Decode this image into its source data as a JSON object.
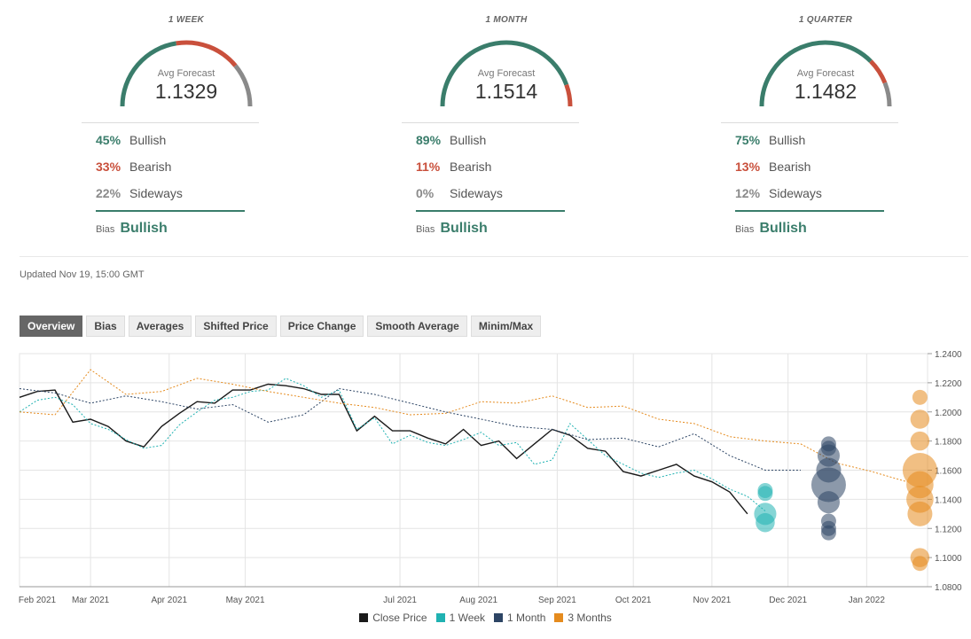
{
  "forecasts": [
    {
      "period": "1 WEEK",
      "avg_label": "Avg Forecast",
      "avg_value": "1.1329",
      "bullish_pct": "45%",
      "bullish_label": "Bullish",
      "bearish_pct": "33%",
      "bearish_label": "Bearish",
      "sideways_pct": "22%",
      "sideways_label": "Sideways",
      "bias_label": "Bias",
      "bias_value": "Bullish",
      "bullish": 45,
      "bearish": 33,
      "sideways": 22
    },
    {
      "period": "1 MONTH",
      "avg_label": "Avg Forecast",
      "avg_value": "1.1514",
      "bullish_pct": "89%",
      "bullish_label": "Bullish",
      "bearish_pct": "11%",
      "bearish_label": "Bearish",
      "sideways_pct": "0%",
      "sideways_label": "Sideways",
      "bias_label": "Bias",
      "bias_value": "Bullish",
      "bullish": 89,
      "bearish": 11,
      "sideways": 0
    },
    {
      "period": "1 QUARTER",
      "avg_label": "Avg Forecast",
      "avg_value": "1.1482",
      "bullish_pct": "75%",
      "bullish_label": "Bullish",
      "bearish_pct": "13%",
      "bearish_label": "Bearish",
      "sideways_pct": "12%",
      "sideways_label": "Sideways",
      "bias_label": "Bias",
      "bias_value": "Bullish",
      "bullish": 75,
      "bearish": 13,
      "sideways": 12
    }
  ],
  "colors": {
    "bullish": "#3a7d6b",
    "bearish": "#c9503c",
    "sideways": "#8a8a8a",
    "close": "#1a1a1a",
    "week": "#20b2b2",
    "month": "#2d4565",
    "quarter": "#e58b1e"
  },
  "updated": "Updated Nov 19, 15:00 GMT",
  "tabs": [
    "Overview",
    "Bias",
    "Averages",
    "Shifted Price",
    "Price Change",
    "Smooth Average",
    "Minim/Max"
  ],
  "active_tab": "Overview",
  "chart_data": {
    "type": "line",
    "x_labels": [
      "Feb 2021",
      "Mar 2021",
      "Apr 2021",
      "May 2021",
      "Jul 2021",
      "Aug 2021",
      "Sep 2021",
      "Oct 2021",
      "Nov 2021",
      "Dec 2021",
      "Jan 2022"
    ],
    "x_label_dates": [
      "2021-02-01",
      "2021-03-01",
      "2021-04-01",
      "2021-05-01",
      "2021-07-01",
      "2021-08-01",
      "2021-09-01",
      "2021-10-01",
      "2021-11-01",
      "2021-12-01",
      "2022-01-01"
    ],
    "x_range": [
      "2021-02-01",
      "2022-01-25"
    ],
    "y_ticks": [
      "1.0800",
      "1.1000",
      "1.1200",
      "1.1400",
      "1.1600",
      "1.1800",
      "1.2000",
      "1.2200",
      "1.2400"
    ],
    "ylim": [
      1.08,
      1.24
    ],
    "series": [
      {
        "name": "Close Price",
        "style": "solid",
        "x": [
          "2021-02-01",
          "2021-02-08",
          "2021-02-15",
          "2021-02-22",
          "2021-03-01",
          "2021-03-08",
          "2021-03-15",
          "2021-03-22",
          "2021-03-29",
          "2021-04-05",
          "2021-04-12",
          "2021-04-19",
          "2021-04-26",
          "2021-05-03",
          "2021-05-10",
          "2021-05-17",
          "2021-05-24",
          "2021-05-31",
          "2021-06-07",
          "2021-06-14",
          "2021-06-21",
          "2021-06-28",
          "2021-07-05",
          "2021-07-12",
          "2021-07-19",
          "2021-07-26",
          "2021-08-02",
          "2021-08-09",
          "2021-08-16",
          "2021-08-23",
          "2021-08-30",
          "2021-09-06",
          "2021-09-13",
          "2021-09-20",
          "2021-09-27",
          "2021-10-04",
          "2021-10-11",
          "2021-10-18",
          "2021-10-25",
          "2021-11-01",
          "2021-11-08",
          "2021-11-15"
        ],
        "y": [
          1.21,
          1.214,
          1.215,
          1.193,
          1.195,
          1.19,
          1.18,
          1.176,
          1.19,
          1.199,
          1.207,
          1.206,
          1.215,
          1.215,
          1.219,
          1.218,
          1.216,
          1.212,
          1.212,
          1.187,
          1.197,
          1.187,
          1.187,
          1.182,
          1.178,
          1.188,
          1.177,
          1.18,
          1.168,
          1.178,
          1.188,
          1.184,
          1.175,
          1.173,
          1.159,
          1.156,
          1.16,
          1.164,
          1.156,
          1.152,
          1.145,
          1.13
        ]
      },
      {
        "name": "1 Week",
        "style": "dashed",
        "x": [
          "2021-02-01",
          "2021-02-08",
          "2021-02-15",
          "2021-02-22",
          "2021-03-01",
          "2021-03-08",
          "2021-03-15",
          "2021-03-22",
          "2021-03-29",
          "2021-04-05",
          "2021-04-12",
          "2021-04-19",
          "2021-04-26",
          "2021-05-03",
          "2021-05-10",
          "2021-05-17",
          "2021-05-24",
          "2021-05-31",
          "2021-06-07",
          "2021-06-14",
          "2021-06-21",
          "2021-06-28",
          "2021-07-05",
          "2021-07-12",
          "2021-07-19",
          "2021-07-26",
          "2021-08-02",
          "2021-08-09",
          "2021-08-16",
          "2021-08-23",
          "2021-08-30",
          "2021-09-06",
          "2021-09-13",
          "2021-09-20",
          "2021-09-27",
          "2021-10-04",
          "2021-10-11",
          "2021-10-18",
          "2021-10-25",
          "2021-11-01",
          "2021-11-08",
          "2021-11-15",
          "2021-11-22"
        ],
        "y": [
          1.2,
          1.208,
          1.21,
          1.205,
          1.192,
          1.188,
          1.181,
          1.175,
          1.177,
          1.191,
          1.2,
          1.208,
          1.21,
          1.214,
          1.215,
          1.223,
          1.218,
          1.21,
          1.215,
          1.188,
          1.196,
          1.178,
          1.184,
          1.179,
          1.177,
          1.181,
          1.186,
          1.177,
          1.179,
          1.164,
          1.167,
          1.192,
          1.181,
          1.17,
          1.164,
          1.158,
          1.155,
          1.158,
          1.16,
          1.154,
          1.147,
          1.142,
          1.132
        ]
      },
      {
        "name": "1 Month",
        "style": "dashed",
        "x": [
          "2021-02-01",
          "2021-02-15",
          "2021-03-01",
          "2021-03-15",
          "2021-03-29",
          "2021-04-12",
          "2021-04-26",
          "2021-05-10",
          "2021-05-24",
          "2021-06-07",
          "2021-06-21",
          "2021-07-05",
          "2021-07-19",
          "2021-08-02",
          "2021-08-16",
          "2021-08-30",
          "2021-09-13",
          "2021-09-27",
          "2021-10-11",
          "2021-10-25",
          "2021-11-08",
          "2021-11-22",
          "2021-12-06"
        ],
        "y": [
          1.216,
          1.213,
          1.206,
          1.211,
          1.207,
          1.202,
          1.205,
          1.193,
          1.198,
          1.216,
          1.212,
          1.206,
          1.2,
          1.195,
          1.19,
          1.188,
          1.181,
          1.182,
          1.176,
          1.185,
          1.17,
          1.16,
          1.16
        ]
      },
      {
        "name": "3 Months",
        "style": "dashed",
        "x": [
          "2021-02-01",
          "2021-02-15",
          "2021-03-01",
          "2021-03-15",
          "2021-03-29",
          "2021-04-12",
          "2021-04-26",
          "2021-05-10",
          "2021-05-24",
          "2021-06-07",
          "2021-06-21",
          "2021-07-05",
          "2021-07-19",
          "2021-08-02",
          "2021-08-16",
          "2021-08-30",
          "2021-09-13",
          "2021-09-27",
          "2021-10-11",
          "2021-10-25",
          "2021-11-08",
          "2021-11-22",
          "2021-12-06",
          "2021-12-20",
          "2022-01-03",
          "2022-01-17"
        ],
        "y": [
          1.2,
          1.198,
          1.229,
          1.212,
          1.214,
          1.223,
          1.219,
          1.214,
          1.21,
          1.206,
          1.203,
          1.198,
          1.199,
          1.207,
          1.206,
          1.211,
          1.203,
          1.204,
          1.195,
          1.192,
          1.183,
          1.18,
          1.178,
          1.165,
          1.159,
          1.152
        ]
      }
    ],
    "bubbles": [
      {
        "series": "1 Week",
        "x": "2021-11-22",
        "points": [
          {
            "y": 1.124,
            "count": 2
          },
          {
            "y": 1.13,
            "count": 3
          },
          {
            "y": 1.144,
            "count": 1
          },
          {
            "y": 1.146,
            "count": 1
          }
        ]
      },
      {
        "series": "1 Month",
        "x": "2021-12-17",
        "points": [
          {
            "y": 1.117,
            "count": 1
          },
          {
            "y": 1.12,
            "count": 1
          },
          {
            "y": 1.125,
            "count": 1
          },
          {
            "y": 1.138,
            "count": 3
          },
          {
            "y": 1.15,
            "count": 9
          },
          {
            "y": 1.16,
            "count": 4
          },
          {
            "y": 1.17,
            "count": 3
          },
          {
            "y": 1.175,
            "count": 1
          },
          {
            "y": 1.178,
            "count": 1
          }
        ]
      },
      {
        "series": "3 Months",
        "x": "2022-01-22",
        "points": [
          {
            "y": 1.1,
            "count": 2
          },
          {
            "y": 1.096,
            "count": 1
          },
          {
            "y": 1.13,
            "count": 4
          },
          {
            "y": 1.14,
            "count": 5
          },
          {
            "y": 1.15,
            "count": 5
          },
          {
            "y": 1.16,
            "count": 9
          },
          {
            "y": 1.18,
            "count": 2
          },
          {
            "y": 1.195,
            "count": 2
          },
          {
            "y": 1.21,
            "count": 1
          }
        ]
      }
    ],
    "legend_position": "bottom",
    "grid": true
  }
}
